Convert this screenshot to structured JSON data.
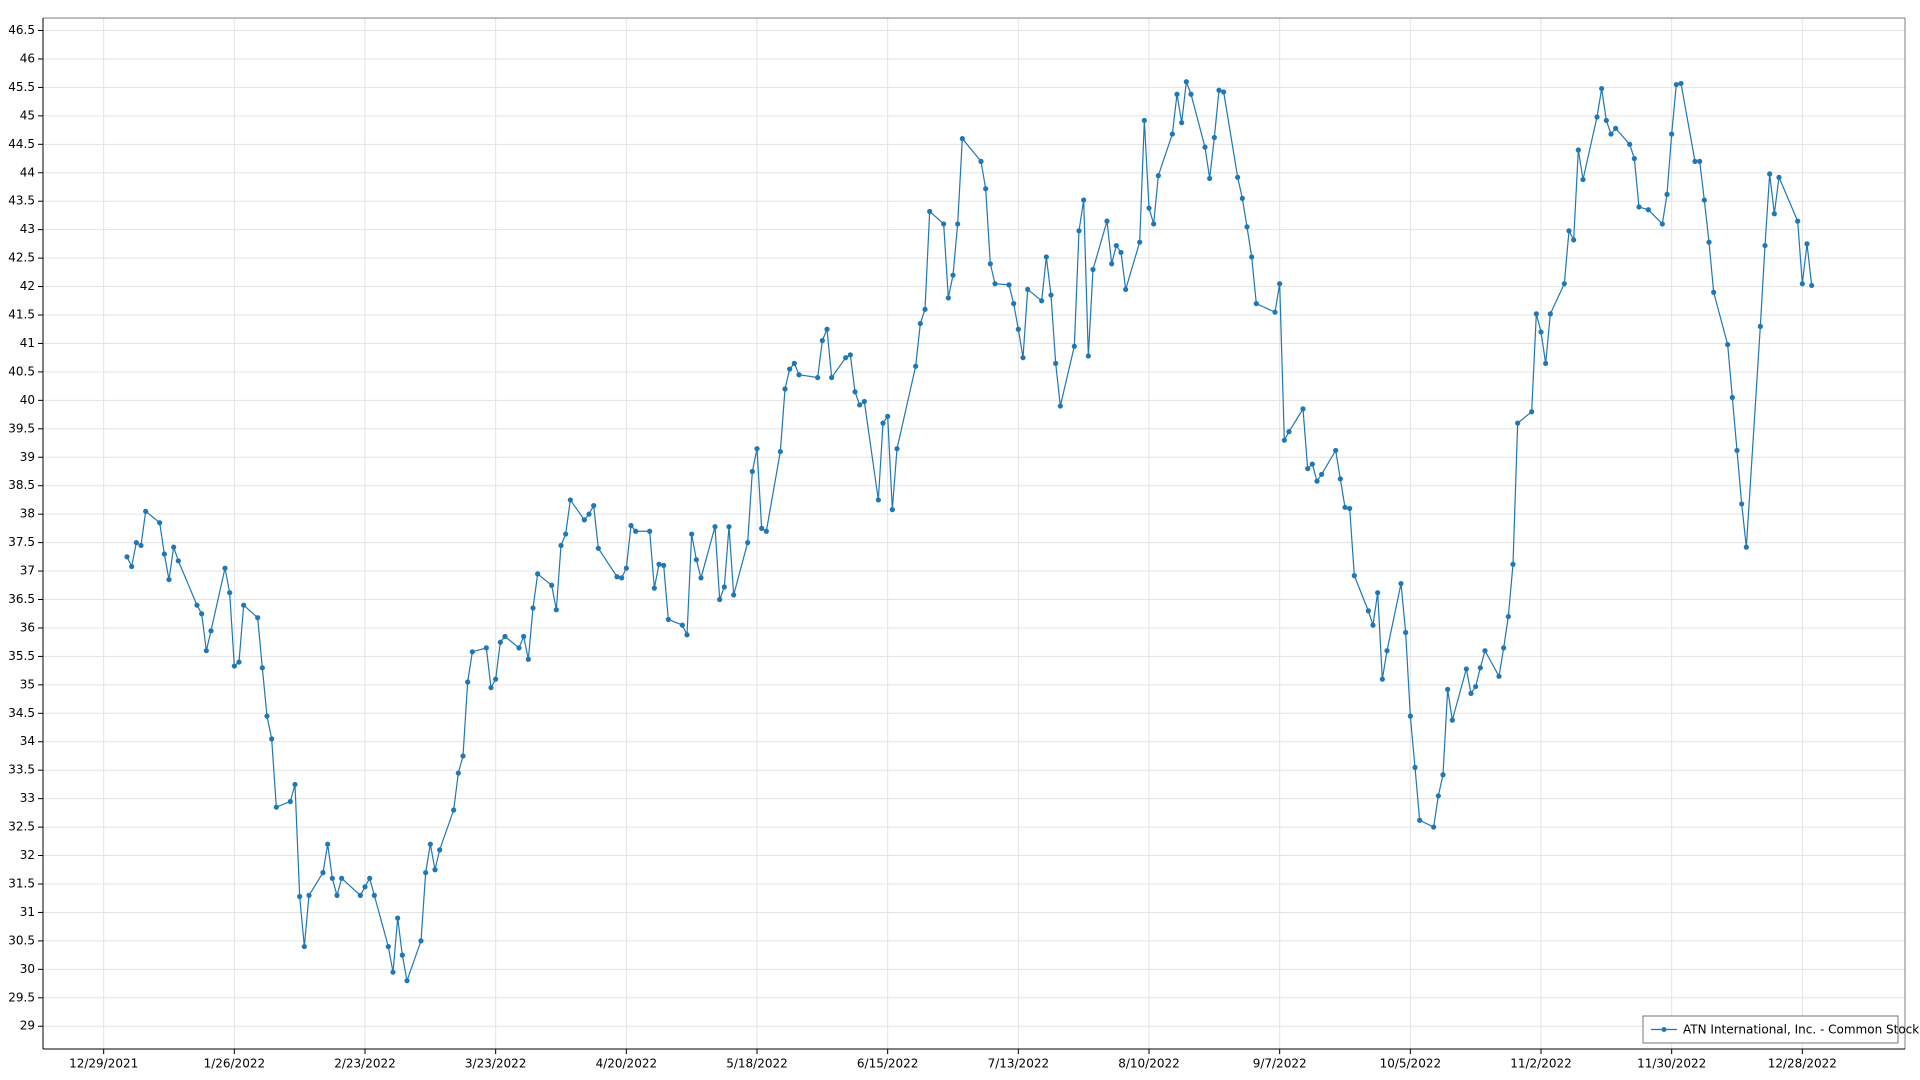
{
  "chart_data": {
    "type": "line",
    "x": [
      "2022-01-03",
      "2022-01-04",
      "2022-01-05",
      "2022-01-06",
      "2022-01-07",
      "2022-01-10",
      "2022-01-11",
      "2022-01-12",
      "2022-01-13",
      "2022-01-14",
      "2022-01-18",
      "2022-01-19",
      "2022-01-20",
      "2022-01-21",
      "2022-01-24",
      "2022-01-25",
      "2022-01-26",
      "2022-01-27",
      "2022-01-28",
      "2022-01-31",
      "2022-02-01",
      "2022-02-02",
      "2022-02-03",
      "2022-02-04",
      "2022-02-07",
      "2022-02-08",
      "2022-02-09",
      "2022-02-10",
      "2022-02-11",
      "2022-02-14",
      "2022-02-15",
      "2022-02-16",
      "2022-02-17",
      "2022-02-18",
      "2022-02-22",
      "2022-02-23",
      "2022-02-24",
      "2022-02-25",
      "2022-02-28",
      "2022-03-01",
      "2022-03-02",
      "2022-03-03",
      "2022-03-04",
      "2022-03-07",
      "2022-03-08",
      "2022-03-09",
      "2022-03-10",
      "2022-03-11",
      "2022-03-14",
      "2022-03-15",
      "2022-03-16",
      "2022-03-17",
      "2022-03-18",
      "2022-03-21",
      "2022-03-22",
      "2022-03-23",
      "2022-03-24",
      "2022-03-25",
      "2022-03-28",
      "2022-03-29",
      "2022-03-30",
      "2022-03-31",
      "2022-04-01",
      "2022-04-04",
      "2022-04-05",
      "2022-04-06",
      "2022-04-07",
      "2022-04-08",
      "2022-04-11",
      "2022-04-12",
      "2022-04-13",
      "2022-04-14",
      "2022-04-18",
      "2022-04-19",
      "2022-04-20",
      "2022-04-21",
      "2022-04-22",
      "2022-04-25",
      "2022-04-26",
      "2022-04-27",
      "2022-04-28",
      "2022-04-29",
      "2022-05-02",
      "2022-05-03",
      "2022-05-04",
      "2022-05-05",
      "2022-05-06",
      "2022-05-09",
      "2022-05-10",
      "2022-05-11",
      "2022-05-12",
      "2022-05-13",
      "2022-05-16",
      "2022-05-17",
      "2022-05-18",
      "2022-05-19",
      "2022-05-20",
      "2022-05-23",
      "2022-05-24",
      "2022-05-25",
      "2022-05-26",
      "2022-05-27",
      "2022-05-31",
      "2022-06-01",
      "2022-06-02",
      "2022-06-03",
      "2022-06-06",
      "2022-06-07",
      "2022-06-08",
      "2022-06-09",
      "2022-06-10",
      "2022-06-13",
      "2022-06-14",
      "2022-06-15",
      "2022-06-16",
      "2022-06-17",
      "2022-06-21",
      "2022-06-22",
      "2022-06-23",
      "2022-06-24",
      "2022-06-27",
      "2022-06-28",
      "2022-06-29",
      "2022-06-30",
      "2022-07-01",
      "2022-07-05",
      "2022-07-06",
      "2022-07-07",
      "2022-07-08",
      "2022-07-11",
      "2022-07-12",
      "2022-07-13",
      "2022-07-14",
      "2022-07-15",
      "2022-07-18",
      "2022-07-19",
      "2022-07-20",
      "2022-07-21",
      "2022-07-22",
      "2022-07-25",
      "2022-07-26",
      "2022-07-27",
      "2022-07-28",
      "2022-07-29",
      "2022-08-01",
      "2022-08-02",
      "2022-08-03",
      "2022-08-04",
      "2022-08-05",
      "2022-08-08",
      "2022-08-09",
      "2022-08-10",
      "2022-08-11",
      "2022-08-12",
      "2022-08-15",
      "2022-08-16",
      "2022-08-17",
      "2022-08-18",
      "2022-08-19",
      "2022-08-22",
      "2022-08-23",
      "2022-08-24",
      "2022-08-25",
      "2022-08-26",
      "2022-08-29",
      "2022-08-30",
      "2022-08-31",
      "2022-09-01",
      "2022-09-02",
      "2022-09-06",
      "2022-09-07",
      "2022-09-08",
      "2022-09-09",
      "2022-09-12",
      "2022-09-13",
      "2022-09-14",
      "2022-09-15",
      "2022-09-16",
      "2022-09-19",
      "2022-09-20",
      "2022-09-21",
      "2022-09-22",
      "2022-09-23",
      "2022-09-26",
      "2022-09-27",
      "2022-09-28",
      "2022-09-29",
      "2022-09-30",
      "2022-10-03",
      "2022-10-04",
      "2022-10-05",
      "2022-10-06",
      "2022-10-07",
      "2022-10-10",
      "2022-10-11",
      "2022-10-12",
      "2022-10-13",
      "2022-10-14",
      "2022-10-17",
      "2022-10-18",
      "2022-10-19",
      "2022-10-20",
      "2022-10-21",
      "2022-10-24",
      "2022-10-25",
      "2022-10-26",
      "2022-10-27",
      "2022-10-28",
      "2022-10-31",
      "2022-11-01",
      "2022-11-02",
      "2022-11-03",
      "2022-11-04",
      "2022-11-07",
      "2022-11-08",
      "2022-11-09",
      "2022-11-10",
      "2022-11-11",
      "2022-11-14",
      "2022-11-15",
      "2022-11-16",
      "2022-11-17",
      "2022-11-18",
      "2022-11-21",
      "2022-11-22",
      "2022-11-23",
      "2022-11-25",
      "2022-11-28",
      "2022-11-29",
      "2022-11-30",
      "2022-12-01",
      "2022-12-02",
      "2022-12-05",
      "2022-12-06",
      "2022-12-07",
      "2022-12-08",
      "2022-12-09",
      "2022-12-12",
      "2022-12-13",
      "2022-12-14",
      "2022-12-15",
      "2022-12-16",
      "2022-12-19",
      "2022-12-20",
      "2022-12-21",
      "2022-12-22",
      "2022-12-23",
      "2022-12-27",
      "2022-12-28",
      "2022-12-29",
      "2022-12-30"
    ],
    "series": [
      {
        "name": "ATN International, Inc. - Common Stock",
        "color": "#1f77b4",
        "values": [
          37.25,
          37.08,
          37.5,
          37.45,
          38.05,
          37.85,
          37.3,
          36.85,
          37.42,
          37.18,
          36.4,
          36.25,
          35.6,
          35.95,
          37.05,
          36.62,
          35.33,
          35.4,
          36.4,
          36.18,
          35.3,
          34.45,
          34.05,
          32.85,
          32.95,
          33.25,
          31.28,
          30.4,
          31.3,
          31.7,
          32.2,
          31.6,
          31.3,
          31.6,
          31.3,
          31.45,
          31.6,
          31.3,
          30.4,
          29.95,
          30.9,
          30.25,
          29.8,
          30.5,
          31.7,
          32.2,
          31.75,
          32.1,
          32.8,
          33.45,
          33.75,
          35.05,
          35.58,
          35.65,
          34.95,
          35.1,
          35.75,
          35.85,
          35.65,
          35.85,
          35.45,
          36.35,
          36.95,
          36.75,
          36.32,
          37.45,
          37.65,
          38.25,
          37.9,
          38.0,
          38.15,
          37.4,
          36.9,
          36.88,
          37.05,
          37.8,
          37.7,
          37.7,
          36.7,
          37.12,
          37.1,
          36.15,
          36.05,
          35.88,
          37.65,
          37.2,
          36.88,
          37.78,
          36.5,
          36.72,
          37.78,
          36.58,
          37.5,
          38.75,
          39.15,
          37.75,
          37.7,
          39.1,
          40.2,
          40.55,
          40.65,
          40.45,
          40.4,
          41.05,
          41.25,
          40.4,
          40.75,
          40.8,
          40.15,
          39.92,
          39.98,
          38.25,
          39.6,
          39.72,
          38.08,
          39.15,
          40.6,
          41.35,
          41.6,
          43.32,
          43.1,
          41.8,
          42.2,
          43.1,
          44.6,
          44.2,
          43.72,
          42.4,
          42.05,
          42.03,
          41.7,
          41.25,
          40.75,
          41.95,
          41.75,
          42.52,
          41.85,
          40.65,
          39.9,
          40.95,
          42.98,
          43.52,
          40.78,
          42.3,
          43.15,
          42.4,
          42.72,
          42.6,
          41.95,
          42.78,
          44.92,
          43.38,
          43.1,
          43.95,
          44.68,
          45.38,
          44.88,
          45.6,
          45.38,
          44.45,
          43.9,
          44.62,
          45.45,
          45.42,
          43.92,
          43.55,
          43.05,
          42.52,
          41.7,
          41.55,
          42.05,
          39.3,
          39.45,
          39.85,
          38.8,
          38.88,
          38.58,
          38.7,
          39.12,
          38.62,
          38.12,
          38.1,
          36.92,
          36.3,
          36.05,
          36.62,
          35.1,
          35.6,
          36.78,
          35.92,
          34.45,
          33.55,
          32.62,
          32.5,
          33.05,
          33.42,
          34.92,
          34.38,
          35.28,
          34.85,
          34.97,
          35.3,
          35.6,
          35.15,
          35.65,
          36.2,
          37.12,
          39.6,
          39.8,
          41.52,
          41.2,
          40.65,
          41.52,
          42.05,
          42.98,
          42.82,
          44.4,
          43.88,
          44.98,
          45.48,
          44.92,
          44.68,
          44.78,
          44.5,
          44.25,
          43.4,
          43.35,
          43.1,
          43.62,
          44.68,
          45.55,
          45.57,
          44.2,
          44.2,
          43.52,
          42.78,
          41.9,
          40.98,
          40.05,
          39.12,
          38.18,
          37.42,
          41.3,
          42.72,
          43.98,
          43.28,
          43.92,
          43.15,
          42.05,
          42.75,
          42.02
        ]
      }
    ],
    "xlim": [
      "2021-12-16",
      "2023-01-19"
    ],
    "xticks": [
      {
        "value": "2021-12-29",
        "label": "12/29/2021"
      },
      {
        "value": "2022-01-26",
        "label": "1/26/2022"
      },
      {
        "value": "2022-02-23",
        "label": "2/23/2022"
      },
      {
        "value": "2022-03-23",
        "label": "3/23/2022"
      },
      {
        "value": "2022-04-20",
        "label": "4/20/2022"
      },
      {
        "value": "2022-05-18",
        "label": "5/18/2022"
      },
      {
        "value": "2022-06-15",
        "label": "6/15/2022"
      },
      {
        "value": "2022-07-13",
        "label": "7/13/2022"
      },
      {
        "value": "2022-08-10",
        "label": "8/10/2022"
      },
      {
        "value": "2022-09-07",
        "label": "9/7/2022"
      },
      {
        "value": "2022-10-05",
        "label": "10/5/2022"
      },
      {
        "value": "2022-11-02",
        "label": "11/2/2022"
      },
      {
        "value": "2022-11-30",
        "label": "11/30/2022"
      },
      {
        "value": "2022-12-28",
        "label": "12/28/2022"
      }
    ],
    "ylim": [
      28.6,
      46.72
    ],
    "yticks": [
      29,
      29.5,
      30,
      30.5,
      31,
      31.5,
      32,
      32.5,
      33,
      33.5,
      34,
      34.5,
      35,
      35.5,
      36,
      36.5,
      37,
      37.5,
      38,
      38.5,
      39,
      39.5,
      40,
      40.5,
      41,
      41.5,
      42,
      42.5,
      43,
      43.5,
      44,
      44.5,
      45,
      45.5,
      46,
      46.5
    ],
    "grid": true,
    "legend": "lower right"
  }
}
